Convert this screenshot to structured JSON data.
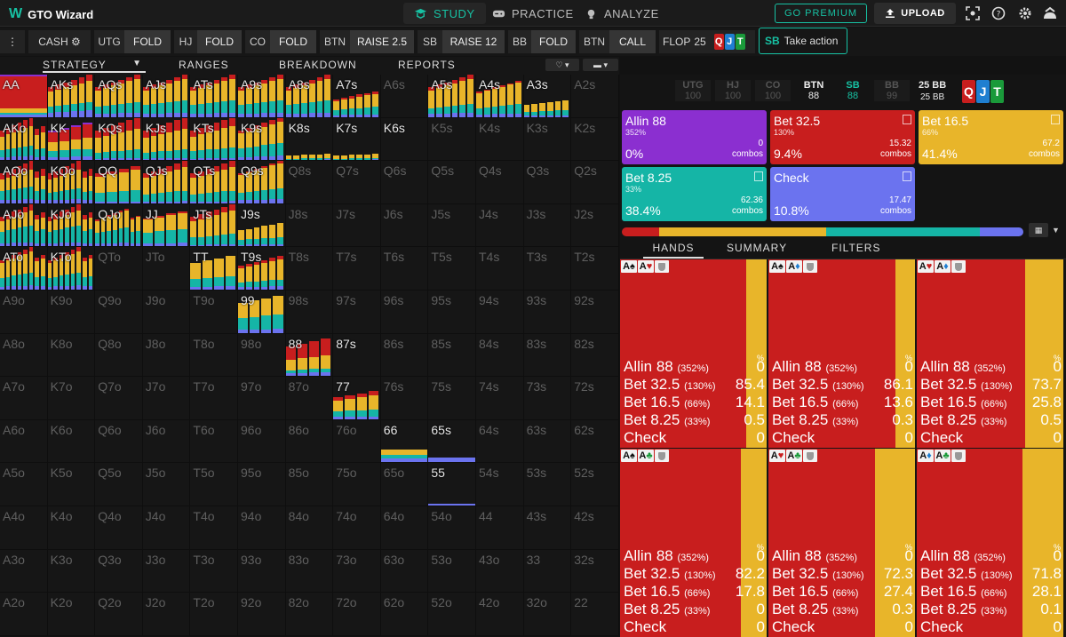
{
  "app": {
    "title": "GTO Wizard"
  },
  "nav": {
    "study": "STUDY",
    "practice": "PRACTICE",
    "analyze": "ANALYZE"
  },
  "top": {
    "premium": "GO PREMIUM",
    "upload": "UPLOAD"
  },
  "actions": [
    {
      "pos": "CASH",
      "act": ""
    },
    {
      "pos": "UTG",
      "act": "FOLD"
    },
    {
      "pos": "HJ",
      "act": "FOLD"
    },
    {
      "pos": "CO",
      "act": "FOLD"
    },
    {
      "pos": "BTN",
      "act": "RAISE 2.5"
    },
    {
      "pos": "SB",
      "act": "RAISE 12"
    },
    {
      "pos": "BB",
      "act": "FOLD"
    },
    {
      "pos": "BTN",
      "act": "CALL"
    }
  ],
  "flop": {
    "label": "FLOP",
    "pot": "25",
    "cards": [
      "Q",
      "J",
      "T"
    ]
  },
  "take_action": {
    "pos": "SB",
    "label": "Take action"
  },
  "tabs": [
    "STRATEGY",
    "RANGES",
    "BREAKDOWN",
    "REPORTS"
  ],
  "colors": {
    "allin": "#8b2fd0",
    "bet325": "#c81e1e",
    "bet165": "#e8b52a",
    "bet825": "#15b5a6",
    "check": "#6b73ef",
    "accent": "#17c1a3"
  },
  "seats": [
    {
      "p": "UTG",
      "s": "100"
    },
    {
      "p": "HJ",
      "s": "100"
    },
    {
      "p": "CO",
      "s": "100"
    },
    {
      "p": "BTN",
      "s": "88"
    },
    {
      "p": "SB",
      "s": "88"
    },
    {
      "p": "BB",
      "s": "99"
    }
  ],
  "pot_info": {
    "top": "25 BB",
    "bottom": "25 BB"
  },
  "action_tiles": [
    {
      "name": "Allin 88",
      "pct": "352%",
      "freq": "0%",
      "combos": "0",
      "combos_label": "combos"
    },
    {
      "name": "Bet 32.5",
      "pct": "130%",
      "freq": "9.4%",
      "combos": "15.32",
      "combos_label": "combos"
    },
    {
      "name": "Bet 16.5",
      "pct": "66%",
      "freq": "41.4%",
      "combos": "67.2",
      "combos_label": "combos"
    },
    {
      "name": "Bet 8.25",
      "pct": "33%",
      "freq": "38.4%",
      "combos": "62.36",
      "combos_label": "combos"
    },
    {
      "name": "Check",
      "pct": "",
      "freq": "10.8%",
      "combos": "17.47",
      "combos_label": "combos"
    }
  ],
  "hand_tabs": [
    "HANDS",
    "SUMMARY",
    "FILTERS"
  ],
  "hands": [
    {
      "cards": [
        [
          "A",
          "♠",
          "k"
        ],
        [
          "A",
          "♥",
          "r"
        ]
      ],
      "vals": [
        "0",
        "85.4",
        "14.1",
        "0.5",
        "0"
      ],
      "yellow": 0.141
    },
    {
      "cards": [
        [
          "A",
          "♠",
          "k"
        ],
        [
          "A",
          "♦",
          "b"
        ]
      ],
      "vals": [
        "0",
        "86.1",
        "13.6",
        "0.3",
        "0"
      ],
      "yellow": 0.136
    },
    {
      "cards": [
        [
          "A",
          "♥",
          "r"
        ],
        [
          "A",
          "♦",
          "b"
        ]
      ],
      "vals": [
        "0",
        "73.7",
        "25.8",
        "0.5",
        "0"
      ],
      "yellow": 0.258
    },
    {
      "cards": [
        [
          "A",
          "♠",
          "k"
        ],
        [
          "A",
          "♣",
          "g"
        ]
      ],
      "vals": [
        "0",
        "82.2",
        "17.8",
        "0",
        "0"
      ],
      "yellow": 0.178
    },
    {
      "cards": [
        [
          "A",
          "♥",
          "r"
        ],
        [
          "A",
          "♣",
          "g"
        ]
      ],
      "vals": [
        "0",
        "72.3",
        "27.4",
        "0.3",
        "0"
      ],
      "yellow": 0.274
    },
    {
      "cards": [
        [
          "A",
          "♦",
          "b"
        ],
        [
          "A",
          "♣",
          "g"
        ]
      ],
      "vals": [
        "0",
        "71.8",
        "28.1",
        "0.1",
        "0"
      ],
      "yellow": 0.281
    }
  ],
  "hand_rows": [
    {
      "name": "Allin 88",
      "pct": "(352%)"
    },
    {
      "name": "Bet 32.5",
      "pct": "(130%)"
    },
    {
      "name": "Bet 16.5",
      "pct": "(66%)"
    },
    {
      "name": "Bet 8.25",
      "pct": "(33%)"
    },
    {
      "name": "Check",
      "pct": ""
    }
  ],
  "pct_label": "%",
  "matrix_labels": [
    [
      "AA",
      "AKs",
      "AQs",
      "AJs",
      "ATs",
      "A9s",
      "A8s",
      "A7s",
      "A6s",
      "A5s",
      "A4s",
      "A3s",
      "A2s"
    ],
    [
      "AKo",
      "KK",
      "KQs",
      "KJs",
      "KTs",
      "K9s",
      "K8s",
      "K7s",
      "K6s",
      "K5s",
      "K4s",
      "K3s",
      "K2s"
    ],
    [
      "AQo",
      "KQo",
      "QQ",
      "QJs",
      "QTs",
      "Q9s",
      "Q8s",
      "Q7s",
      "Q6s",
      "Q5s",
      "Q4s",
      "Q3s",
      "Q2s"
    ],
    [
      "AJo",
      "KJo",
      "QJo",
      "JJ",
      "JTs",
      "J9s",
      "J8s",
      "J7s",
      "J6s",
      "J5s",
      "J4s",
      "J3s",
      "J2s"
    ],
    [
      "ATo",
      "KTo",
      "QTo",
      "JTo",
      "TT",
      "T9s",
      "T8s",
      "T7s",
      "T6s",
      "T5s",
      "T4s",
      "T3s",
      "T2s"
    ],
    [
      "A9o",
      "K9o",
      "Q9o",
      "J9o",
      "T9o",
      "99",
      "98s",
      "97s",
      "96s",
      "95s",
      "94s",
      "93s",
      "92s"
    ],
    [
      "A8o",
      "K8o",
      "Q8o",
      "J8o",
      "T8o",
      "98o",
      "88",
      "87s",
      "86s",
      "85s",
      "84s",
      "83s",
      "82s"
    ],
    [
      "A7o",
      "K7o",
      "Q7o",
      "J7o",
      "T7o",
      "97o",
      "87o",
      "77",
      "76s",
      "75s",
      "74s",
      "73s",
      "72s"
    ],
    [
      "A6o",
      "K6o",
      "Q6o",
      "J6o",
      "T6o",
      "96o",
      "86o",
      "76o",
      "66",
      "65s",
      "64s",
      "63s",
      "62s"
    ],
    [
      "A5o",
      "K5o",
      "Q5o",
      "J5o",
      "T5o",
      "95o",
      "85o",
      "75o",
      "65o",
      "55",
      "54s",
      "53s",
      "52s"
    ],
    [
      "A4o",
      "K4o",
      "Q4o",
      "J4o",
      "T4o",
      "94o",
      "84o",
      "74o",
      "64o",
      "54o",
      "44",
      "43s",
      "42s"
    ],
    [
      "A3o",
      "K3o",
      "Q3o",
      "J3o",
      "T3o",
      "93o",
      "83o",
      "73o",
      "63o",
      "53o",
      "43o",
      "33",
      "32s"
    ],
    [
      "A2o",
      "K2o",
      "Q2o",
      "J2o",
      "T2o",
      "92o",
      "82o",
      "72o",
      "62o",
      "52o",
      "42o",
      "32o",
      "22"
    ]
  ],
  "matrix_freq": {
    "AA": {
      "h": 1,
      "c": [
        0.05,
        0.75,
        0.1,
        0.05,
        0.05
      ],
      "n": 1
    },
    "AKs": {
      "h": 1,
      "c": [
        0,
        0.15,
        0.5,
        0.2,
        0.15
      ],
      "n": 6
    },
    "AQs": {
      "h": 1,
      "c": [
        0,
        0.1,
        0.55,
        0.25,
        0.1
      ],
      "n": 6
    },
    "AJs": {
      "h": 1,
      "c": [
        0,
        0.1,
        0.5,
        0.3,
        0.1
      ],
      "n": 6
    },
    "ATs": {
      "h": 1,
      "c": [
        0,
        0.1,
        0.5,
        0.3,
        0.1
      ],
      "n": 6
    },
    "A9s": {
      "h": 1,
      "c": [
        0,
        0.1,
        0.5,
        0.3,
        0.1
      ],
      "n": 6
    },
    "A8s": {
      "h": 1,
      "c": [
        0,
        0.1,
        0.5,
        0.3,
        0.1
      ],
      "n": 6
    },
    "A7s": {
      "h": 0.6,
      "c": [
        0,
        0.1,
        0.5,
        0.3,
        0.1
      ],
      "n": 6
    },
    "A5s": {
      "h": 1,
      "c": [
        0,
        0.1,
        0.6,
        0.2,
        0.1
      ],
      "n": 6
    },
    "A4s": {
      "h": 0.85,
      "c": [
        0,
        0.05,
        0.6,
        0.25,
        0.1
      ],
      "n": 6
    },
    "A3s": {
      "h": 0.4,
      "c": [
        0,
        0,
        0.6,
        0.3,
        0.1
      ],
      "n": 6
    },
    "AKo": {
      "h": 1,
      "c": [
        0,
        0.2,
        0.45,
        0.25,
        0.1
      ],
      "n": 8
    },
    "KK": {
      "h": 1,
      "c": [
        0.05,
        0.35,
        0.3,
        0.2,
        0.1
      ],
      "n": 4
    },
    "KQs": {
      "h": 1,
      "c": [
        0,
        0.25,
        0.5,
        0.2,
        0.05
      ],
      "n": 6
    },
    "KJs": {
      "h": 1,
      "c": [
        0,
        0.25,
        0.5,
        0.2,
        0.05
      ],
      "n": 6
    },
    "KTs": {
      "h": 1,
      "c": [
        0,
        0.2,
        0.5,
        0.25,
        0.05
      ],
      "n": 6
    },
    "K9s": {
      "h": 1,
      "c": [
        0,
        0.1,
        0.5,
        0.3,
        0.1
      ],
      "n": 6
    },
    "K8s": {
      "h": 0.15,
      "c": [
        0,
        0,
        0.7,
        0.2,
        0.1
      ],
      "n": 6
    },
    "K7s": {
      "h": 0.15,
      "c": [
        0,
        0,
        0.7,
        0.2,
        0.1
      ],
      "n": 6
    },
    "AQo": {
      "h": 1,
      "c": [
        0,
        0.2,
        0.4,
        0.3,
        0.1
      ],
      "n": 8
    },
    "KQo": {
      "h": 1,
      "c": [
        0,
        0.2,
        0.45,
        0.25,
        0.1
      ],
      "n": 8
    },
    "QQ": {
      "h": 1,
      "c": [
        0,
        0.1,
        0.55,
        0.3,
        0.05
      ],
      "n": 4
    },
    "QJs": {
      "h": 1,
      "c": [
        0,
        0.15,
        0.55,
        0.25,
        0.05
      ],
      "n": 6
    },
    "QTs": {
      "h": 1,
      "c": [
        0,
        0.15,
        0.55,
        0.25,
        0.05
      ],
      "n": 6
    },
    "Q9s": {
      "h": 1,
      "c": [
        0,
        0.05,
        0.6,
        0.25,
        0.1
      ],
      "n": 6
    },
    "AJo": {
      "h": 1,
      "c": [
        0,
        0.15,
        0.35,
        0.4,
        0.1
      ],
      "n": 8
    },
    "KJo": {
      "h": 1,
      "c": [
        0,
        0.15,
        0.35,
        0.4,
        0.1
      ],
      "n": 8
    },
    "QJo": {
      "h": 0.9,
      "c": [
        0,
        0.05,
        0.45,
        0.4,
        0.1
      ],
      "n": 8
    },
    "JJ": {
      "h": 0.95,
      "c": [
        0,
        0.05,
        0.45,
        0.4,
        0.1
      ],
      "n": 4
    },
    "JTs": {
      "h": 1,
      "c": [
        0,
        0.15,
        0.55,
        0.25,
        0.05
      ],
      "n": 6
    },
    "J9s": {
      "h": 0.55,
      "c": [
        0,
        0,
        0.6,
        0.3,
        0.1
      ],
      "n": 6
    },
    "ATo": {
      "h": 1,
      "c": [
        0,
        0.1,
        0.5,
        0.3,
        0.1
      ],
      "n": 8
    },
    "KTo": {
      "h": 1,
      "c": [
        0,
        0.1,
        0.5,
        0.3,
        0.1
      ],
      "n": 8
    },
    "TT": {
      "h": 0.9,
      "c": [
        0,
        0,
        0.6,
        0.3,
        0.1
      ],
      "n": 4
    },
    "T9s": {
      "h": 0.8,
      "c": [
        0,
        0.1,
        0.6,
        0.2,
        0.1
      ],
      "n": 6
    },
    "99": {
      "h": 1,
      "c": [
        0,
        0,
        0.5,
        0.4,
        0.1
      ],
      "n": 4
    },
    "88": {
      "h": 1,
      "c": [
        0,
        0.45,
        0.35,
        0.1,
        0.1
      ],
      "n": 4
    },
    "77": {
      "h": 0.75,
      "c": [
        0,
        0.15,
        0.5,
        0.25,
        0.1
      ],
      "n": 4
    },
    "66": {
      "h": 0.3,
      "c": [
        0,
        0,
        0.4,
        0.3,
        0.3
      ],
      "n": 1
    },
    "65s": {
      "h": 0.12,
      "c": [
        0,
        0,
        0,
        0,
        1
      ],
      "n": 1
    },
    "55": {
      "h": 0.05,
      "c": [
        0,
        0,
        0,
        0,
        1
      ],
      "n": 1
    }
  },
  "matrix_bright": [
    "AA",
    "AKs",
    "AQs",
    "AJs",
    "ATs",
    "A9s",
    "A8s",
    "A7s",
    "A5s",
    "A4s",
    "A3s",
    "AKo",
    "KK",
    "KQs",
    "KJs",
    "KTs",
    "K9s",
    "K8s",
    "K7s",
    "K6s",
    "AQo",
    "KQo",
    "QQ",
    "QJs",
    "QTs",
    "Q9s",
    "AJo",
    "KJo",
    "QJo",
    "JJ",
    "JTs",
    "J9s",
    "ATo",
    "KTo",
    "TT",
    "T9s",
    "99",
    "88",
    "87s",
    "77",
    "66",
    "65s",
    "55"
  ]
}
